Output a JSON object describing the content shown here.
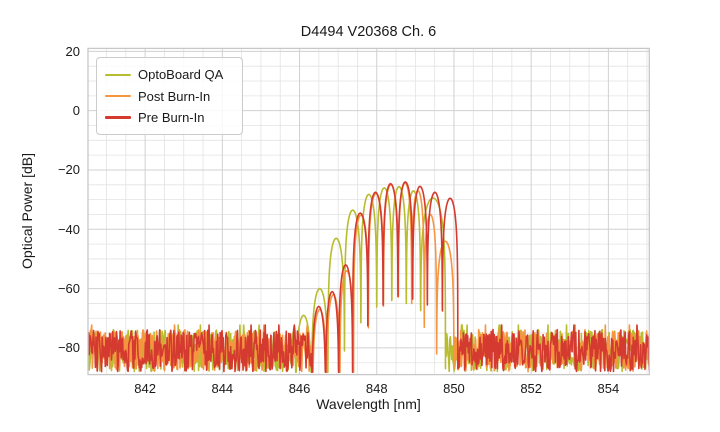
{
  "chart_data": {
    "type": "line",
    "title": "D4494 V20368 Ch. 6",
    "xlabel": "Wavelength [nm]",
    "ylabel": "Optical Power [dB]",
    "xlim": [
      840.52,
      855.06
    ],
    "ylim": [
      -89,
      21
    ],
    "x_ticks": [
      842,
      844,
      846,
      848,
      850,
      852,
      854
    ],
    "y_ticks": [
      20,
      0,
      -20,
      -40,
      -60,
      -80
    ],
    "x_minor_step": 0.5,
    "y_minor_step": 5,
    "grid": true,
    "legend_position": "upper left",
    "grid_major_color": "#d0d0d0",
    "grid_minor_color": "#e3e3e3",
    "plot_border_color": "#c8c8c8",
    "noise_floor_db": {
      "max": -73.8,
      "min": -88,
      "mean": -80
    },
    "series": [
      {
        "name": "OptoBoard QA",
        "color": "#b8bc2f",
        "band": [
          845.9,
          849.78
        ],
        "lobes": [
          [
            846.1,
            -69
          ],
          [
            846.52,
            -60
          ],
          [
            846.95,
            -43
          ],
          [
            847.38,
            -33.5
          ],
          [
            847.8,
            -28.2
          ],
          [
            848.2,
            -26.0
          ],
          [
            848.58,
            -25.6
          ],
          [
            848.95,
            -27.0
          ],
          [
            849.32,
            -29.4
          ]
        ]
      },
      {
        "name": "Post Burn-In",
        "color": "#f79440",
        "band": [
          846.34,
          850.0
        ],
        "lobes": [
          [
            846.53,
            -67
          ],
          [
            846.88,
            -62
          ],
          [
            847.21,
            -54
          ],
          [
            847.59,
            -35.2
          ],
          [
            847.98,
            -27.9
          ],
          [
            848.37,
            -24.9
          ],
          [
            848.75,
            -24.3
          ],
          [
            849.06,
            -27.0
          ],
          [
            849.4,
            -35.0
          ],
          [
            849.7,
            -44.0
          ]
        ]
      },
      {
        "name": "Pre Burn-In",
        "color": "#d43a2f",
        "band": [
          846.32,
          850.1
        ],
        "lobes": [
          [
            846.5,
            -66
          ],
          [
            846.85,
            -61
          ],
          [
            847.18,
            -52
          ],
          [
            847.57,
            -34.5
          ],
          [
            847.97,
            -27.5
          ],
          [
            848.36,
            -24.6
          ],
          [
            848.74,
            -24.0
          ],
          [
            849.12,
            -25.5
          ],
          [
            849.5,
            -27.5
          ],
          [
            849.9,
            -29.5
          ]
        ]
      }
    ]
  }
}
